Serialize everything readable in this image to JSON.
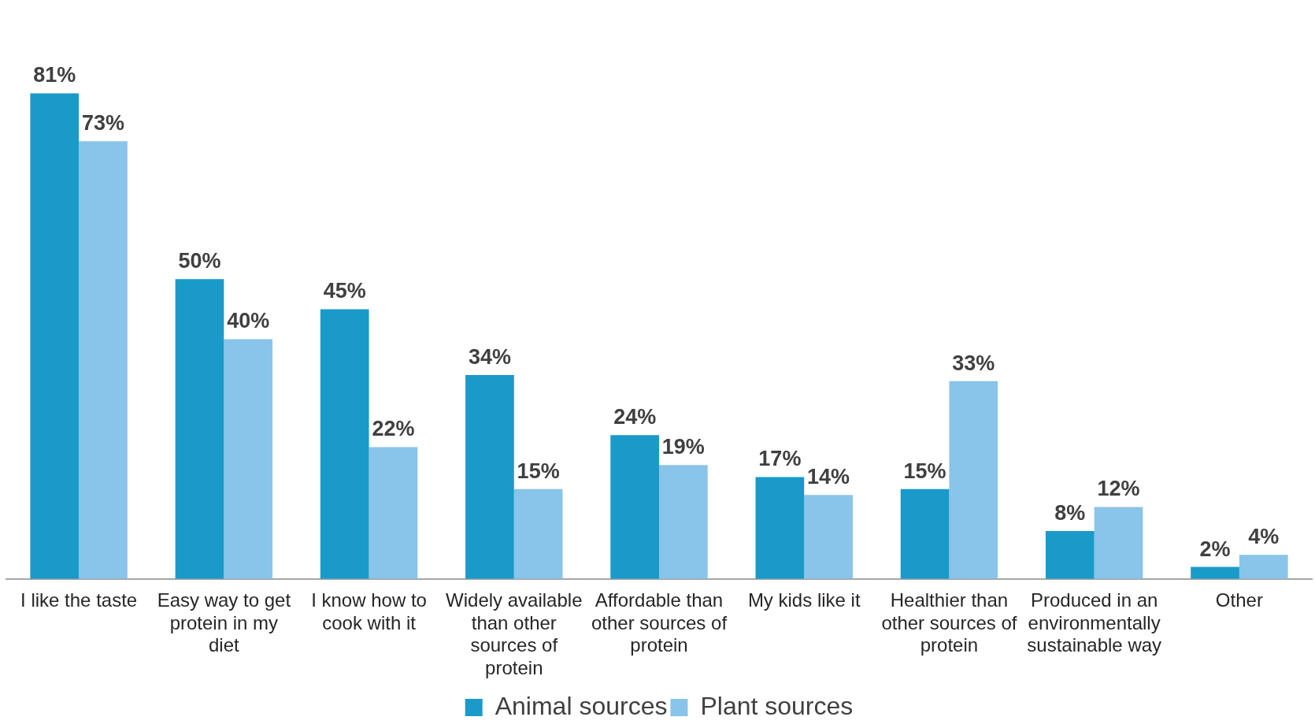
{
  "chart_data": {
    "type": "bar",
    "categories": [
      "I like the taste",
      "Easy way to get protein in my diet",
      "I know how to cook with it",
      "Widely available than other sources of protein",
      "Affordable than other sources of protein",
      "My kids like it",
      "Healthier than other sources of protein",
      "Produced in an environmentally sustainable way",
      "Other"
    ],
    "series": [
      {
        "name": "Animal sources",
        "color": "#1a9ac9",
        "values": [
          81,
          50,
          45,
          34,
          24,
          17,
          15,
          8,
          2
        ],
        "value_labels": [
          "81%",
          "50%",
          "45%",
          "34%",
          "24%",
          "17%",
          "15%",
          "8%",
          "2%"
        ]
      },
      {
        "name": "Plant sources",
        "color": "#89c4ea",
        "values": [
          73,
          40,
          22,
          15,
          19,
          14,
          33,
          12,
          4
        ],
        "value_labels": [
          "73%",
          "40%",
          "22%",
          "15%",
          "19%",
          "14%",
          "33%",
          "12%",
          "4%"
        ]
      }
    ],
    "legend": "bottom",
    "grid": false
  }
}
